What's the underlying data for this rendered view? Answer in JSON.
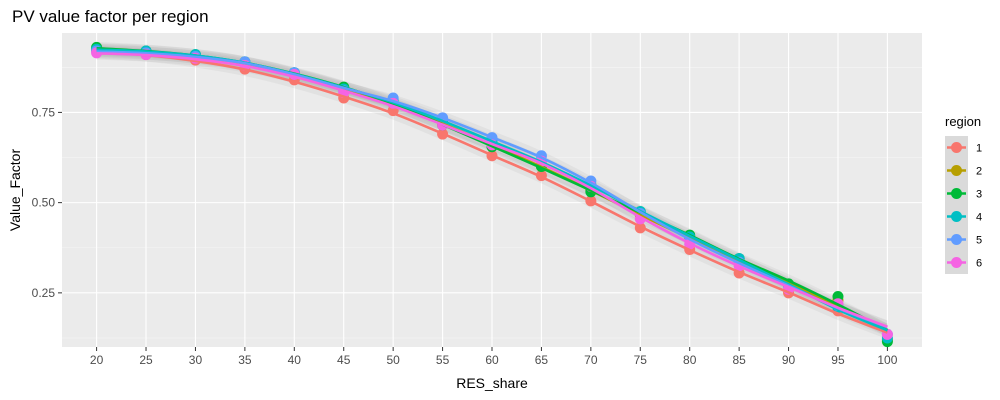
{
  "chart_data": {
    "type": "scatter",
    "title": "PV value factor per region",
    "xlabel": "RES_share",
    "ylabel": "Value_Factor",
    "x": [
      20,
      25,
      30,
      35,
      40,
      45,
      50,
      55,
      60,
      65,
      70,
      75,
      80,
      85,
      90,
      95,
      100
    ],
    "x_ticks": [
      "20",
      "25",
      "30",
      "35",
      "40",
      "45",
      "50",
      "55",
      "60",
      "65",
      "70",
      "75",
      "80",
      "85",
      "90",
      "95",
      "100"
    ],
    "y_ticks": [
      "0.25",
      "0.50",
      "0.75"
    ],
    "xlim": [
      16.5,
      103.5
    ],
    "ylim": [
      0.1,
      0.97
    ],
    "grid": true,
    "smooth_lines": true,
    "confidence_band": true,
    "legend": {
      "title": "region",
      "position": "right"
    },
    "series": [
      {
        "name": "1",
        "color": "#F8766D",
        "values": [
          0.92,
          0.91,
          0.895,
          0.87,
          0.84,
          0.79,
          0.755,
          0.69,
          0.63,
          0.575,
          0.505,
          0.43,
          0.37,
          0.305,
          0.25,
          0.2,
          0.12
        ]
      },
      {
        "name": "2",
        "color": "#B79F00",
        "values": [
          0.925,
          0.915,
          0.905,
          0.885,
          0.855,
          0.815,
          0.775,
          0.72,
          0.66,
          0.6,
          0.535,
          0.465,
          0.4,
          0.34,
          0.27,
          0.23,
          0.12
        ]
      },
      {
        "name": "3",
        "color": "#00BA38",
        "values": [
          0.93,
          0.92,
          0.91,
          0.89,
          0.86,
          0.82,
          0.78,
          0.715,
          0.655,
          0.6,
          0.53,
          0.475,
          0.41,
          0.345,
          0.275,
          0.24,
          0.115
        ]
      },
      {
        "name": "4",
        "color": "#00BFC4",
        "values": [
          0.925,
          0.92,
          0.91,
          0.89,
          0.86,
          0.815,
          0.785,
          0.725,
          0.67,
          0.615,
          0.55,
          0.475,
          0.405,
          0.345,
          0.27,
          0.21,
          0.125
        ]
      },
      {
        "name": "5",
        "color": "#619CFF",
        "values": [
          0.92,
          0.915,
          0.905,
          0.89,
          0.86,
          0.81,
          0.79,
          0.735,
          0.68,
          0.63,
          0.56,
          0.47,
          0.395,
          0.335,
          0.265,
          0.215,
          0.135
        ]
      },
      {
        "name": "6",
        "color": "#F564E3",
        "values": [
          0.915,
          0.91,
          0.9,
          0.88,
          0.855,
          0.805,
          0.775,
          0.715,
          0.66,
          0.615,
          0.545,
          0.455,
          0.385,
          0.325,
          0.26,
          0.22,
          0.135
        ]
      }
    ]
  }
}
